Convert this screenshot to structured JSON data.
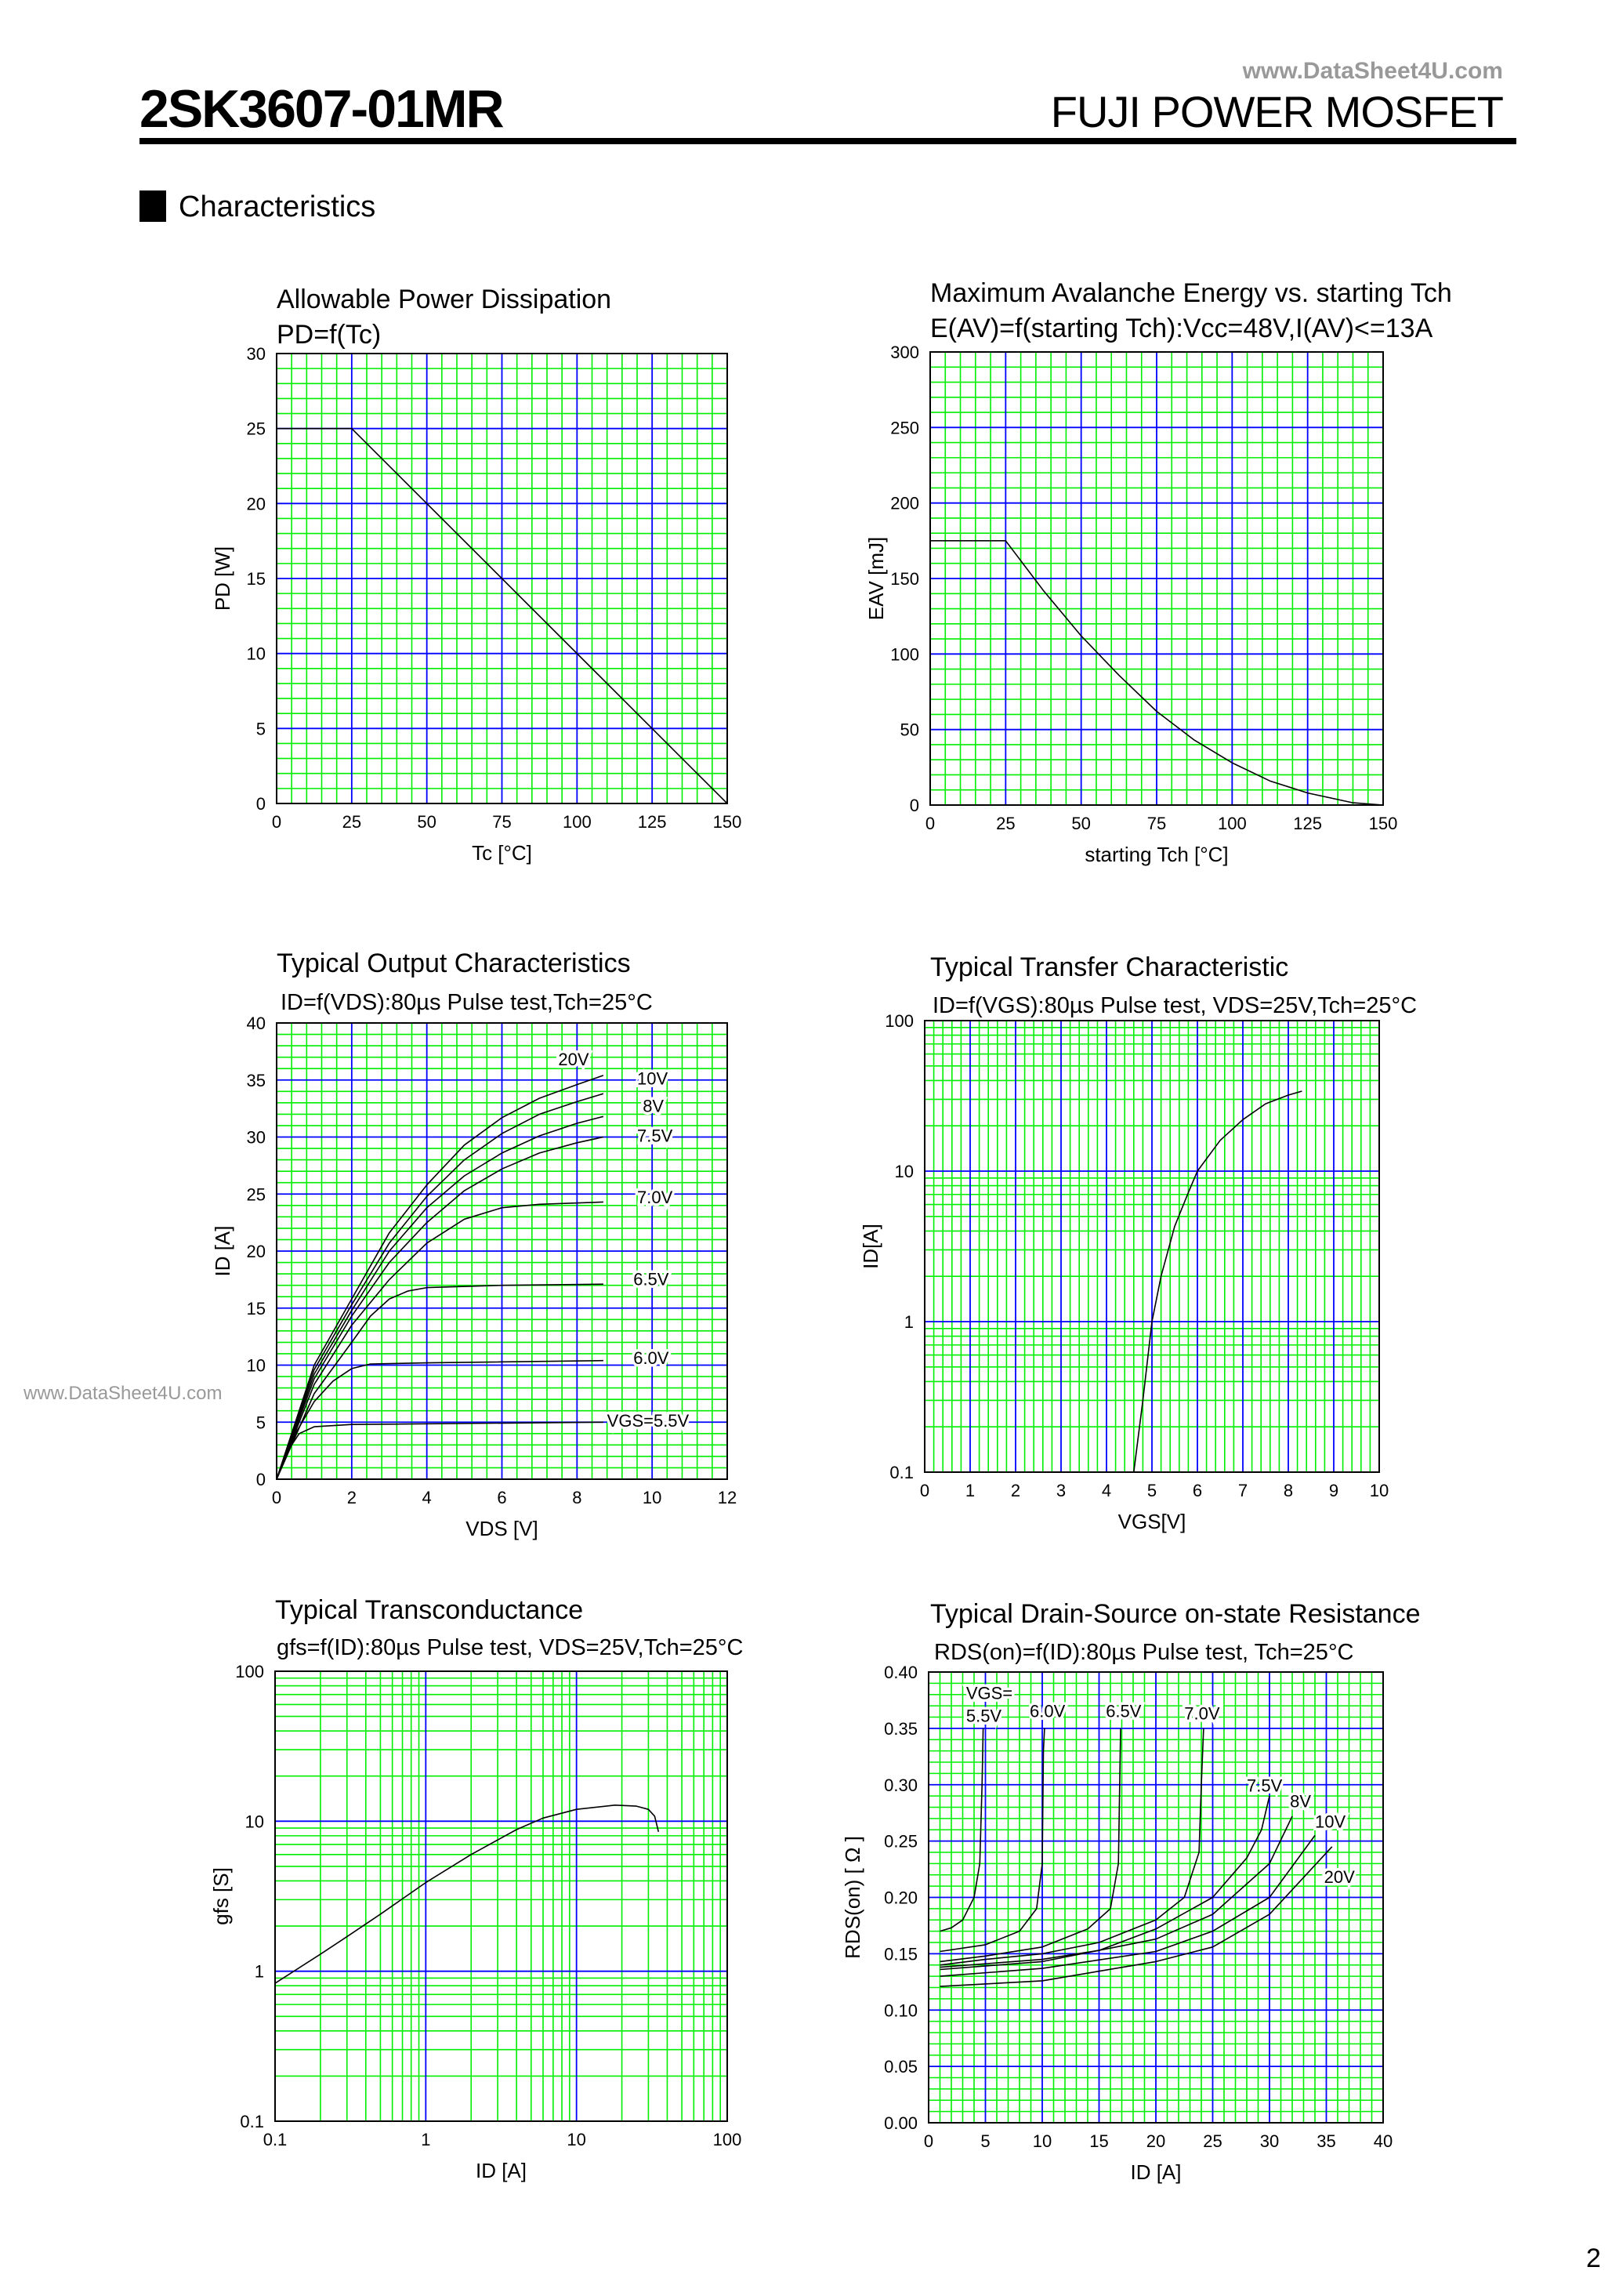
{
  "header": {
    "part_number": "2SK3607-01MR",
    "brand": "FUJI POWER MOSFET",
    "watermark_top": "www.DataSheet4U.com",
    "watermark_side": "www.DataSheet4U.com"
  },
  "section": {
    "title": "Characteristics"
  },
  "page_number": "2",
  "colors": {
    "minor_grid": "#00ee00",
    "major_grid": "#0000ff",
    "curve": "#000000",
    "watermark": "#999999"
  },
  "chart_data": [
    {
      "type": "line",
      "title": "Allowable Power Dissipation",
      "subtitle": "PD=f(Tc)",
      "xlabel": "Tc [°C]",
      "ylabel": "PD [W]",
      "xlim": [
        0,
        150
      ],
      "ylim": [
        0,
        30
      ],
      "xlog": false,
      "ylog": false,
      "grid": {
        "x_minor": 5,
        "x_major": 25,
        "y_minor": 1,
        "y_major": 5
      },
      "xticks": [
        "0",
        "25",
        "50",
        "75",
        "100",
        "125",
        "150"
      ],
      "yticks": [
        "0",
        "5",
        "10",
        "15",
        "20",
        "25",
        "30"
      ],
      "series": [
        {
          "points": [
            [
              0,
              25
            ],
            [
              25,
              25
            ],
            [
              150,
              0
            ]
          ]
        }
      ],
      "labels": []
    },
    {
      "type": "line",
      "title": "Maximum Avalanche Energy vs. starting Tch",
      "subtitle": "E(AV)=f(starting Tch):Vcc=48V,I(AV)<=13A",
      "xlabel": "starting Tch [°C]",
      "ylabel": "EAV [mJ]",
      "xlim": [
        0,
        150
      ],
      "ylim": [
        0,
        300
      ],
      "xlog": false,
      "ylog": false,
      "grid": {
        "x_minor": 5,
        "x_major": 25,
        "y_minor": 10,
        "y_major": 50
      },
      "xticks": [
        "0",
        "25",
        "50",
        "75",
        "100",
        "125",
        "150"
      ],
      "yticks": [
        "0",
        "50",
        "100",
        "150",
        "200",
        "250",
        "300"
      ],
      "series": [
        {
          "points": [
            [
              0,
              175
            ],
            [
              25,
              175
            ],
            [
              37.5,
              142
            ],
            [
              50,
              112
            ],
            [
              62.5,
              86
            ],
            [
              75,
              62
            ],
            [
              87.5,
              43
            ],
            [
              100,
              28
            ],
            [
              112.5,
              16
            ],
            [
              125,
              8
            ],
            [
              140,
              1.5
            ],
            [
              150,
              0
            ]
          ]
        }
      ],
      "labels": []
    },
    {
      "type": "line",
      "title": "Typical Output Characteristics",
      "subtitle": "ID=f(VDS):80µs Pulse test,Tch=25°C",
      "xlabel": "VDS [V]",
      "ylabel": "ID [A]",
      "xlim": [
        0,
        12
      ],
      "ylim": [
        0,
        40
      ],
      "xlog": false,
      "ylog": false,
      "grid": {
        "x_minor": 0.4,
        "x_major": 2,
        "y_minor": 1,
        "y_major": 5
      },
      "xticks": [
        "0",
        "2",
        "4",
        "6",
        "8",
        "10",
        "12"
      ],
      "yticks": [
        "0",
        "5",
        "10",
        "15",
        "20",
        "25",
        "30",
        "35",
        "40"
      ],
      "series": [
        {
          "name": "VGS=5.5V",
          "points": [
            [
              0,
              0
            ],
            [
              0.3,
              2.5
            ],
            [
              0.6,
              4
            ],
            [
              1,
              4.6
            ],
            [
              2,
              4.8
            ],
            [
              8.7,
              5.0
            ]
          ]
        },
        {
          "name": "6.0V",
          "points": [
            [
              0,
              0
            ],
            [
              0.5,
              4
            ],
            [
              1,
              6.8
            ],
            [
              1.5,
              8.6
            ],
            [
              2,
              9.7
            ],
            [
              2.5,
              10.1
            ],
            [
              4,
              10.2
            ],
            [
              8.7,
              10.4
            ]
          ]
        },
        {
          "name": "6.5V",
          "points": [
            [
              0,
              0
            ],
            [
              1,
              7.5
            ],
            [
              2,
              12
            ],
            [
              2.5,
              14.3
            ],
            [
              3,
              15.8
            ],
            [
              3.5,
              16.5
            ],
            [
              4,
              16.8
            ],
            [
              6,
              17
            ],
            [
              8.7,
              17.1
            ]
          ]
        },
        {
          "name": "7.0V",
          "points": [
            [
              0,
              0
            ],
            [
              1,
              8.3
            ],
            [
              2,
              13.5
            ],
            [
              3,
              17.5
            ],
            [
              4,
              20.7
            ],
            [
              5,
              22.8
            ],
            [
              6,
              23.8
            ],
            [
              7,
              24.1
            ],
            [
              8.7,
              24.3
            ]
          ]
        },
        {
          "name": "7.5V",
          "points": [
            [
              0,
              0
            ],
            [
              1,
              8.8
            ],
            [
              2,
              14.3
            ],
            [
              3,
              19
            ],
            [
              4,
              22.5
            ],
            [
              5,
              25.3
            ],
            [
              6,
              27.2
            ],
            [
              7,
              28.6
            ],
            [
              8,
              29.5
            ],
            [
              8.7,
              30
            ]
          ]
        },
        {
          "name": "8V",
          "points": [
            [
              0,
              0
            ],
            [
              1,
              9.2
            ],
            [
              2,
              14.8
            ],
            [
              3,
              20
            ],
            [
              4,
              23.8
            ],
            [
              5,
              26.6
            ],
            [
              6,
              28.6
            ],
            [
              7,
              30.1
            ],
            [
              8,
              31.2
            ],
            [
              8.7,
              31.8
            ]
          ]
        },
        {
          "name": "10V",
          "points": [
            [
              0,
              0
            ],
            [
              1,
              9.6
            ],
            [
              2,
              15.3
            ],
            [
              3,
              20.7
            ],
            [
              4,
              24.8
            ],
            [
              5,
              28
            ],
            [
              6,
              30.3
            ],
            [
              7,
              32
            ],
            [
              8,
              33.1
            ],
            [
              8.7,
              33.8
            ]
          ]
        },
        {
          "name": "20V",
          "points": [
            [
              0,
              0
            ],
            [
              1,
              10
            ],
            [
              2,
              15.8
            ],
            [
              3,
              21.6
            ],
            [
              4,
              25.8
            ],
            [
              5,
              29.3
            ],
            [
              6,
              31.7
            ],
            [
              7,
              33.4
            ],
            [
              8,
              34.6
            ],
            [
              8.7,
              35.4
            ]
          ]
        }
      ],
      "labels": [
        {
          "text": "20V",
          "x": 7.5,
          "y": 36.3
        },
        {
          "text": "10V",
          "x": 9.6,
          "y": 34.6
        },
        {
          "text": "8V",
          "x": 9.75,
          "y": 32.2
        },
        {
          "text": "7.5V",
          "x": 9.6,
          "y": 29.6
        },
        {
          "text": "7.0V",
          "x": 9.6,
          "y": 24.2
        },
        {
          "text": "6.5V",
          "x": 9.5,
          "y": 17
        },
        {
          "text": "6.0V",
          "x": 9.5,
          "y": 10.1
        },
        {
          "text": "VGS=5.5V",
          "x": 8.8,
          "y": 4.6
        }
      ]
    },
    {
      "type": "line",
      "title": "Typical Transfer Characteristic",
      "subtitle": "ID=f(VGS):80µs Pulse test, VDS=25V,Tch=25°C",
      "xlabel": "VGS[V]",
      "ylabel": "ID[A]",
      "xlim": [
        0,
        10
      ],
      "ylim": [
        0.1,
        100
      ],
      "xlog": false,
      "ylog": true,
      "grid": {
        "x_minor": 0.2,
        "x_major": 1
      },
      "xticks": [
        "0",
        "1",
        "2",
        "3",
        "4",
        "5",
        "6",
        "7",
        "8",
        "9",
        "10"
      ],
      "yticks": [
        "0.1",
        "1",
        "10",
        "100"
      ],
      "series": [
        {
          "points": [
            [
              4.6,
              0.1
            ],
            [
              4.8,
              0.3
            ],
            [
              5,
              1
            ],
            [
              5.2,
              2
            ],
            [
              5.5,
              4.3
            ],
            [
              5.8,
              7.2
            ],
            [
              6,
              10
            ],
            [
              6.5,
              16
            ],
            [
              7,
              22
            ],
            [
              7.5,
              28
            ],
            [
              8,
              32
            ],
            [
              8.3,
              34
            ]
          ]
        }
      ],
      "labels": []
    },
    {
      "type": "line",
      "title": "Typical Transconductance",
      "subtitle": "gfs=f(ID):80µs Pulse test, VDS=25V,Tch=25°C",
      "xlabel": "ID [A]",
      "ylabel": "gfs [S]",
      "xlim": [
        0.1,
        100
      ],
      "ylim": [
        0.1,
        100
      ],
      "xlog": true,
      "ylog": true,
      "xticks": [
        "0.1",
        "1",
        "10",
        "100"
      ],
      "yticks": [
        "0.1",
        "1",
        "10",
        "100"
      ],
      "series": [
        {
          "points": [
            [
              0.1,
              0.83
            ],
            [
              0.2,
              1.3
            ],
            [
              0.3,
              1.7
            ],
            [
              0.5,
              2.4
            ],
            [
              1,
              3.9
            ],
            [
              2,
              6
            ],
            [
              4,
              8.8
            ],
            [
              6,
              10.5
            ],
            [
              10,
              12
            ],
            [
              18,
              12.8
            ],
            [
              25,
              12.6
            ],
            [
              30,
              12
            ],
            [
              33,
              10.8
            ],
            [
              35,
              8.5
            ]
          ]
        }
      ],
      "labels": []
    },
    {
      "type": "line",
      "title": "Typical Drain-Source on-state Resistance",
      "subtitle": "RDS(on)=f(ID):80µs Pulse test, Tch=25°C",
      "xlabel": "ID [A]",
      "ylabel": "RDS(on) [ Ω ]",
      "xlim": [
        0,
        40
      ],
      "ylim": [
        0,
        0.4
      ],
      "xlog": false,
      "ylog": false,
      "grid": {
        "x_minor": 1,
        "x_major": 5,
        "y_minor": 0.01,
        "y_major": 0.05
      },
      "xticks": [
        "0",
        "5",
        "10",
        "15",
        "20",
        "25",
        "30",
        "35",
        "40"
      ],
      "yticks": [
        "0.00",
        "0.05",
        "0.10",
        "0.15",
        "0.20",
        "0.25",
        "0.30",
        "0.35",
        "0.40"
      ],
      "series": [
        {
          "name": "5.5V",
          "points": [
            [
              1,
              0.17
            ],
            [
              2,
              0.173
            ],
            [
              3,
              0.18
            ],
            [
              4,
              0.2
            ],
            [
              4.5,
              0.23
            ],
            [
              4.7,
              0.3
            ],
            [
              4.8,
              0.35
            ]
          ]
        },
        {
          "name": "6.0V",
          "points": [
            [
              1,
              0.152
            ],
            [
              5,
              0.158
            ],
            [
              8,
              0.17
            ],
            [
              9.5,
              0.19
            ],
            [
              10,
              0.23
            ],
            [
              10.1,
              0.33
            ],
            [
              10.2,
              0.35
            ]
          ]
        },
        {
          "name": "6.5V",
          "points": [
            [
              1,
              0.143
            ],
            [
              5,
              0.148
            ],
            [
              10,
              0.156
            ],
            [
              14,
              0.172
            ],
            [
              16,
              0.19
            ],
            [
              16.7,
              0.23
            ],
            [
              16.9,
              0.35
            ]
          ]
        },
        {
          "name": "7.0V",
          "points": [
            [
              1,
              0.14
            ],
            [
              5,
              0.145
            ],
            [
              10,
              0.15
            ],
            [
              15,
              0.16
            ],
            [
              20,
              0.18
            ],
            [
              22.5,
              0.2
            ],
            [
              23.8,
              0.24
            ],
            [
              24,
              0.3
            ],
            [
              24.2,
              0.35
            ]
          ]
        },
        {
          "name": "7.5V",
          "points": [
            [
              1,
              0.138
            ],
            [
              10,
              0.145
            ],
            [
              15,
              0.153
            ],
            [
              20,
              0.172
            ],
            [
              25,
              0.2
            ],
            [
              28,
              0.235
            ],
            [
              29.3,
              0.26
            ],
            [
              30,
              0.29
            ]
          ]
        },
        {
          "name": "8V",
          "points": [
            [
              1,
              0.136
            ],
            [
              10,
              0.143
            ],
            [
              20,
              0.163
            ],
            [
              25,
              0.185
            ],
            [
              30,
              0.23
            ],
            [
              32,
              0.272
            ]
          ]
        },
        {
          "name": "10V",
          "points": [
            [
              1,
              0.13
            ],
            [
              10,
              0.137
            ],
            [
              20,
              0.152
            ],
            [
              25,
              0.17
            ],
            [
              30,
              0.2
            ],
            [
              34,
              0.255
            ]
          ]
        },
        {
          "name": "20V",
          "points": [
            [
              1,
              0.121
            ],
            [
              10,
              0.126
            ],
            [
              20,
              0.143
            ],
            [
              25,
              0.156
            ],
            [
              30,
              0.185
            ],
            [
              35.5,
              0.245
            ]
          ]
        }
      ],
      "labels": [
        {
          "text": "VGS=",
          "x": 3.3,
          "y": 0.376
        },
        {
          "text": "5.5V",
          "x": 3.3,
          "y": 0.356
        },
        {
          "text": "6.0V",
          "x": 8.9,
          "y": 0.36
        },
        {
          "text": "6.5V",
          "x": 15.6,
          "y": 0.36
        },
        {
          "text": "7.0V",
          "x": 22.5,
          "y": 0.358
        },
        {
          "text": "7.5V",
          "x": 28,
          "y": 0.294
        },
        {
          "text": "8V",
          "x": 31.8,
          "y": 0.28
        },
        {
          "text": "10V",
          "x": 34,
          "y": 0.262
        },
        {
          "text": "20V",
          "x": 34.8,
          "y": 0.213
        }
      ]
    }
  ]
}
